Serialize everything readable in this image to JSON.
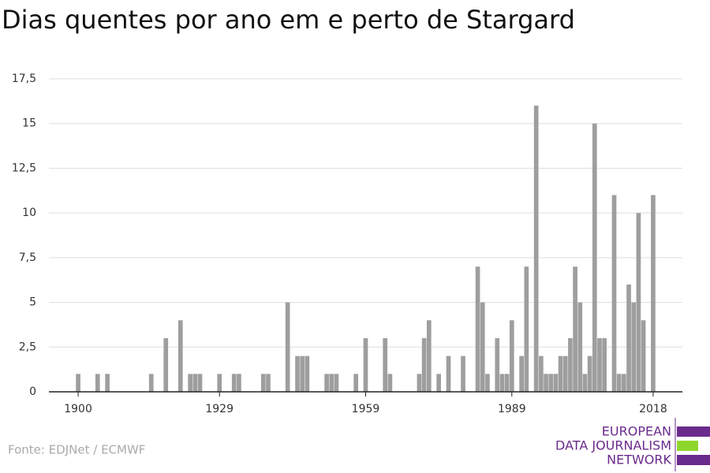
{
  "chart_data": {
    "type": "bar",
    "title": "Dias quentes por ano em e perto de Stargard",
    "source": "Fonte: EDJNet / ECMWF",
    "logo": [
      "EUROPEAN",
      "DATA JOURNALISM",
      "NETWORK"
    ],
    "color": "#9e9e9e",
    "x": [
      1900,
      1904,
      1906,
      1915,
      1918,
      1921,
      1923,
      1924,
      1925,
      1929,
      1932,
      1933,
      1938,
      1939,
      1943,
      1945,
      1946,
      1947,
      1951,
      1952,
      1953,
      1957,
      1959,
      1963,
      1964,
      1970,
      1971,
      1972,
      1974,
      1976,
      1979,
      1982,
      1983,
      1984,
      1986,
      1987,
      1988,
      1989,
      1991,
      1992,
      1994,
      1995,
      1996,
      1997,
      1998,
      1999,
      2000,
      2001,
      2002,
      2003,
      2004,
      2005,
      2006,
      2007,
      2008,
      2010,
      2011,
      2012,
      2013,
      2014,
      2015,
      2016,
      2018
    ],
    "values": [
      1,
      1,
      1,
      1,
      3,
      4,
      1,
      1,
      1,
      1,
      1,
      1,
      1,
      1,
      5,
      2,
      2,
      2,
      1,
      1,
      1,
      1,
      3,
      3,
      1,
      1,
      3,
      4,
      1,
      2,
      2,
      7,
      5,
      1,
      3,
      1,
      1,
      4,
      2,
      7,
      16,
      2,
      1,
      1,
      1,
      2,
      2,
      3,
      7,
      5,
      1,
      2,
      15,
      3,
      3,
      11,
      1,
      1,
      6,
      5,
      10,
      4,
      11
    ],
    "xlim": [
      1894,
      2024
    ],
    "xticks": [
      1900,
      1929,
      1959,
      1989,
      2018
    ],
    "ylim": [
      0,
      17.5
    ],
    "yticks": [
      0,
      {
        "value": 2.5,
        "label": "2,5"
      },
      5,
      {
        "value": 7.5,
        "label": "7,5"
      },
      10,
      {
        "value": 12.5,
        "label": "12,5"
      },
      15,
      {
        "value": 17.5,
        "label": "17,5"
      }
    ],
    "grid": true
  }
}
